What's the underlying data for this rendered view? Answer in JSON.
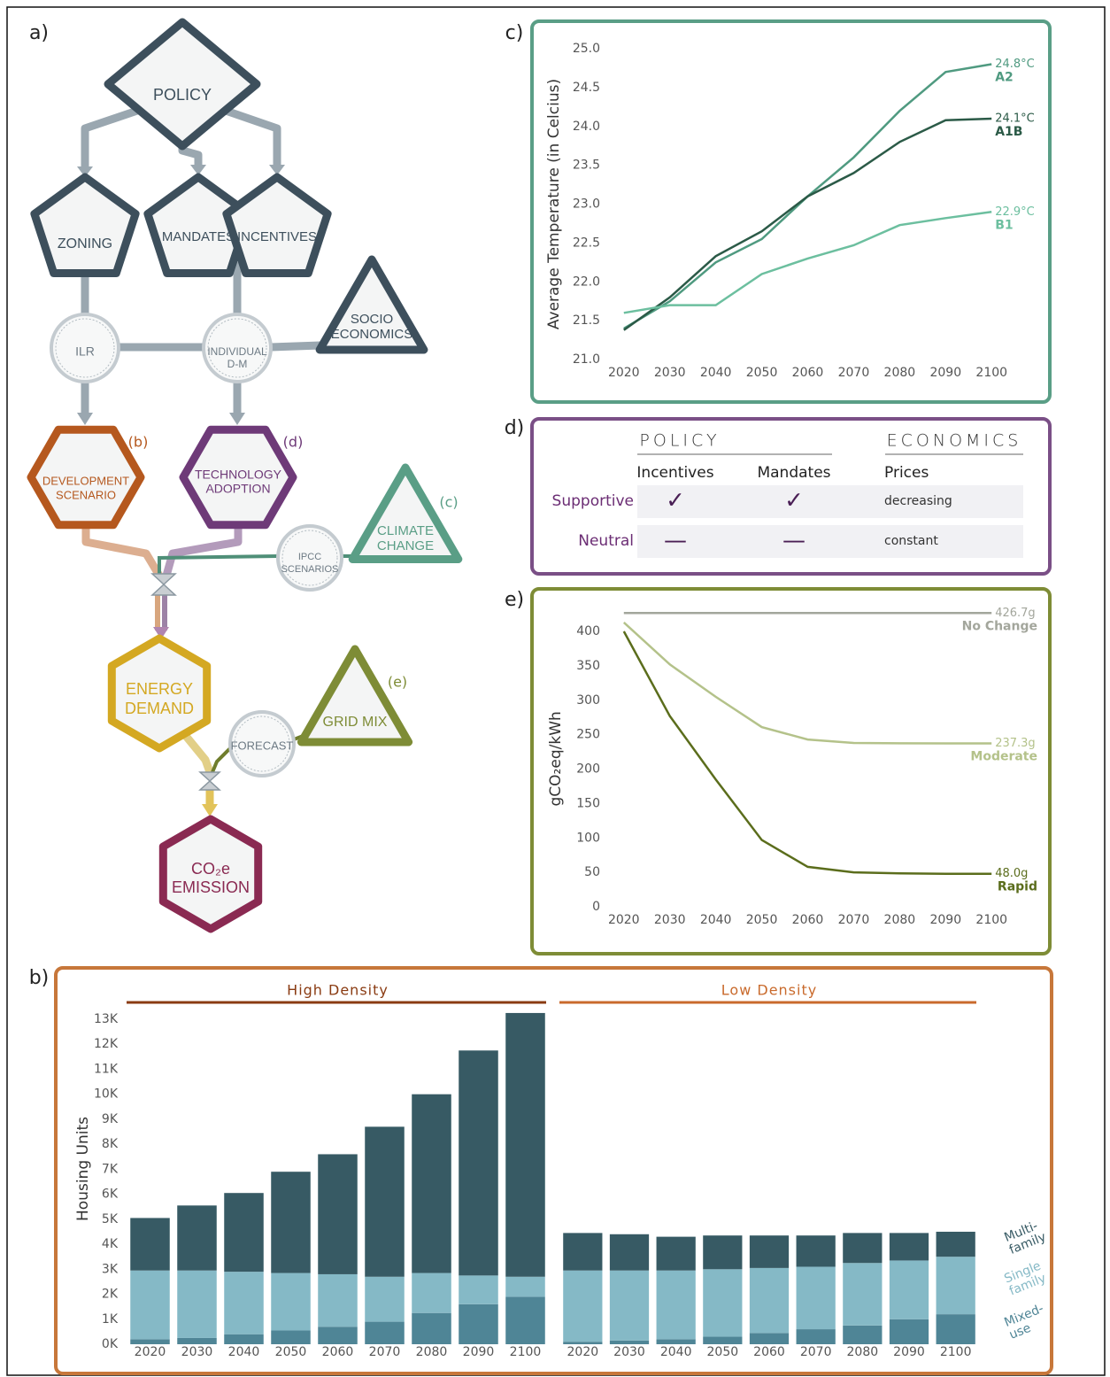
{
  "panels": {
    "a": "a)",
    "b": "b)",
    "c": "c)",
    "d": "d)",
    "e": "e)"
  },
  "diagram": {
    "nodes": [
      {
        "label": [
          "POLICY"
        ]
      },
      {
        "label": [
          "ZONING"
        ]
      },
      {
        "label": [
          "MANDATES"
        ]
      },
      {
        "label": [
          "INCENTIVES"
        ]
      },
      {
        "label": [
          "ILR"
        ]
      },
      {
        "label": [
          "INDIVIDUAL",
          "D-M"
        ]
      },
      {
        "label": [
          "SOCIO",
          "ECONOMICS"
        ]
      },
      {
        "label": [
          "DEVELOPMENT",
          "SCENARIO"
        ]
      },
      {
        "label": [
          "TECHNOLOGY",
          "ADOPTION"
        ]
      },
      {
        "label": [
          "CLIMATE",
          "CHANGE"
        ]
      },
      {
        "label": [
          "IPCC",
          "SCENARIOS"
        ]
      },
      {
        "label": [
          "ENERGY",
          "DEMAND"
        ]
      },
      {
        "label": [
          "GRID MIX"
        ]
      },
      {
        "label": [
          "FORECAST"
        ]
      },
      {
        "label": [
          "CO₂e",
          "EMISSION"
        ]
      }
    ],
    "refs": [
      "(b)",
      "(d)",
      "(c)",
      "(e)"
    ]
  },
  "table": {
    "groups": [
      "POLICY",
      "ECONOMICS"
    ],
    "columns": [
      "Incentives",
      "Mandates",
      "Prices"
    ],
    "rows": [
      [
        "Supportive",
        "✓",
        "✓",
        "decreasing"
      ],
      [
        "Neutral",
        "—",
        "—",
        "constant"
      ]
    ]
  },
  "chart_data": [
    {
      "type": "line",
      "ylabel": "Average Temperature (in Celcius)",
      "x": [
        2020,
        2030,
        2040,
        2050,
        2060,
        2070,
        2080,
        2090,
        2100
      ],
      "xlim": [
        2016,
        2104
      ],
      "xticks": [
        2020,
        2030,
        2040,
        2050,
        2060,
        2070,
        2080,
        2090,
        2100
      ],
      "ylim": [
        21,
        25
      ],
      "yticks": [
        {
          "value": 21,
          "label": "21.0"
        },
        21.5,
        {
          "value": 22,
          "label": "22.0"
        },
        22.5,
        {
          "value": 23,
          "label": "23.0"
        },
        23.5,
        {
          "value": 24,
          "label": "24.0"
        },
        24.5,
        {
          "value": 25,
          "label": "25.0"
        }
      ],
      "series": [
        {
          "name": "A2",
          "color": "#4f9a80",
          "values": [
            21.4,
            21.75,
            22.25,
            22.55,
            23.1,
            23.6,
            24.2,
            24.7,
            24.8
          ],
          "value_labels": [
            null,
            null,
            null,
            null,
            null,
            null,
            null,
            null,
            "24.8°C"
          ]
        },
        {
          "name": "A1B",
          "color": "#2b5a47",
          "values": [
            21.38,
            21.8,
            22.33,
            22.65,
            23.1,
            23.4,
            23.8,
            24.08,
            24.1
          ],
          "value_labels": [
            null,
            null,
            null,
            null,
            null,
            null,
            null,
            null,
            "24.1°C"
          ]
        },
        {
          "name": "B1",
          "color": "#6cbf9f",
          "values": [
            21.6,
            21.7,
            21.7,
            22.1,
            22.3,
            22.47,
            22.73,
            22.82,
            22.9
          ],
          "value_labels": [
            null,
            null,
            null,
            null,
            null,
            null,
            null,
            null,
            "22.9°C"
          ]
        }
      ]
    },
    {
      "type": "line",
      "ylabel": "gCO₂eq/kWh",
      "x": [
        2020,
        2030,
        2040,
        2050,
        2060,
        2070,
        2080,
        2090,
        2100
      ],
      "xlim": [
        2016,
        2104
      ],
      "xticks": [
        2020,
        2030,
        2040,
        2050,
        2060,
        2070,
        2080,
        2090,
        2100
      ],
      "ylim": [
        0,
        430
      ],
      "yticks": [
        0,
        50,
        100,
        150,
        200,
        250,
        300,
        350,
        400
      ],
      "series": [
        {
          "name": "No Change",
          "color": "#a3a69c",
          "values": [
            426.7,
            426.7,
            426.7,
            426.7,
            426.7,
            426.7,
            426.7,
            426.7,
            426.7
          ],
          "value_labels": [
            null,
            null,
            null,
            null,
            null,
            null,
            null,
            null,
            "426.7g"
          ]
        },
        {
          "name": "Moderate",
          "color": "#b4c28a",
          "values": [
            413,
            352,
            305,
            261,
            243,
            238,
            237.5,
            237.3,
            237.3
          ],
          "value_labels": [
            null,
            null,
            null,
            null,
            null,
            null,
            null,
            null,
            "237.3g"
          ]
        },
        {
          "name": "Rapid",
          "color": "#5b6d1c",
          "values": [
            400,
            277,
            185,
            97,
            58,
            50,
            48.5,
            48,
            48.0
          ],
          "value_labels": [
            null,
            null,
            null,
            null,
            null,
            null,
            null,
            null,
            "48.0g"
          ]
        }
      ]
    },
    {
      "type": "stacked-bar",
      "ylabel": "Housing Units",
      "groups": [
        {
          "name": "High Density",
          "color": "#8a3b12"
        },
        {
          "name": "Low Density",
          "color": "#c96a2c"
        }
      ],
      "categories": [
        "2020",
        "2030",
        "2040",
        "2050",
        "2060",
        "2070",
        "2080",
        "2090",
        "2100",
        "2020",
        "2030",
        "2040",
        "2050",
        "2060",
        "2070",
        "2080",
        "2090",
        "2100"
      ],
      "ylim": [
        0,
        13400
      ],
      "yticks": [
        {
          "value": 0,
          "label": "0K"
        },
        {
          "value": 1000,
          "label": "1K"
        },
        {
          "value": 2000,
          "label": "2K"
        },
        {
          "value": 3000,
          "label": "3K"
        },
        {
          "value": 4000,
          "label": "4K"
        },
        {
          "value": 5000,
          "label": "5K"
        },
        {
          "value": 6000,
          "label": "6K"
        },
        {
          "value": 7000,
          "label": "7K"
        },
        {
          "value": 8000,
          "label": "8K"
        },
        {
          "value": 9000,
          "label": "9K"
        },
        {
          "value": 10000,
          "label": "10K"
        },
        {
          "value": 11000,
          "label": "11K"
        },
        {
          "value": 12000,
          "label": "12K"
        },
        {
          "value": 13000,
          "label": "13K"
        }
      ],
      "series": [
        {
          "name": "Mixed-use",
          "color": "#4f8596",
          "values": [
            200,
            250,
            400,
            550,
            700,
            900,
            1250,
            1600,
            1900,
            100,
            150,
            200,
            300,
            450,
            600,
            750,
            1000,
            1200
          ]
        },
        {
          "name": "Single family",
          "color": "#85b9c6",
          "values": [
            2750,
            2700,
            2500,
            2300,
            2100,
            1800,
            1600,
            1150,
            800,
            2850,
            2800,
            2750,
            2700,
            2600,
            2500,
            2500,
            2350,
            2300
          ]
        },
        {
          "name": "Multi-family",
          "color": "#375a64",
          "values": [
            2100,
            2600,
            3150,
            4050,
            4800,
            6000,
            7150,
            9000,
            10550,
            1500,
            1450,
            1350,
            1350,
            1300,
            1250,
            1200,
            1100,
            1000
          ]
        }
      ]
    }
  ]
}
